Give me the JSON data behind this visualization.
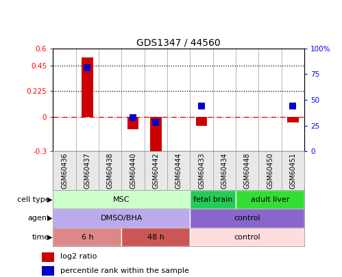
{
  "title": "GDS1347 / 44560",
  "samples": [
    "GSM60436",
    "GSM60437",
    "GSM60438",
    "GSM60440",
    "GSM60442",
    "GSM60444",
    "GSM60433",
    "GSM60434",
    "GSM60448",
    "GSM60450",
    "GSM60451"
  ],
  "log2_ratio": [
    0.0,
    0.52,
    0.0,
    -0.11,
    -0.32,
    0.0,
    -0.08,
    0.0,
    0.0,
    0.0,
    -0.05
  ],
  "pct_right": [
    null,
    81,
    null,
    33,
    28,
    null,
    44,
    null,
    null,
    null,
    44
  ],
  "ylim_left": [
    -0.3,
    0.6
  ],
  "ylim_right": [
    0,
    100
  ],
  "yticks_left": [
    -0.3,
    0.0,
    0.225,
    0.45,
    0.6
  ],
  "yticks_right": [
    0,
    25,
    50,
    75,
    100
  ],
  "ytick_labels_left": [
    "-0.3",
    "0",
    "0.225",
    "0.45",
    "0.6"
  ],
  "ytick_labels_right": [
    "0",
    "25",
    "50",
    "75",
    "100%"
  ],
  "hlines": [
    0.45,
    0.225
  ],
  "bar_color": "#cc0000",
  "dot_color": "#0000cc",
  "cell_type_groups": [
    {
      "label": "MSC",
      "start": 0,
      "end": 5,
      "color": "#ccffcc"
    },
    {
      "label": "fetal brain",
      "start": 6,
      "end": 7,
      "color": "#22cc55"
    },
    {
      "label": "adult liver",
      "start": 8,
      "end": 10,
      "color": "#33dd33"
    }
  ],
  "agent_groups": [
    {
      "label": "DMSO/BHA",
      "start": 0,
      "end": 5,
      "color": "#bbaaee"
    },
    {
      "label": "control",
      "start": 6,
      "end": 10,
      "color": "#8866cc"
    }
  ],
  "time_groups": [
    {
      "label": "6 h",
      "start": 0,
      "end": 2,
      "color": "#dd8888"
    },
    {
      "label": "48 h",
      "start": 3,
      "end": 5,
      "color": "#cc5555"
    },
    {
      "label": "control",
      "start": 6,
      "end": 10,
      "color": "#ffdddd"
    }
  ],
  "row_labels": [
    "cell type",
    "agent",
    "time"
  ],
  "legend_items": [
    {
      "label": "log2 ratio",
      "color": "#cc0000"
    },
    {
      "label": "percentile rank within the sample",
      "color": "#0000cc"
    }
  ]
}
